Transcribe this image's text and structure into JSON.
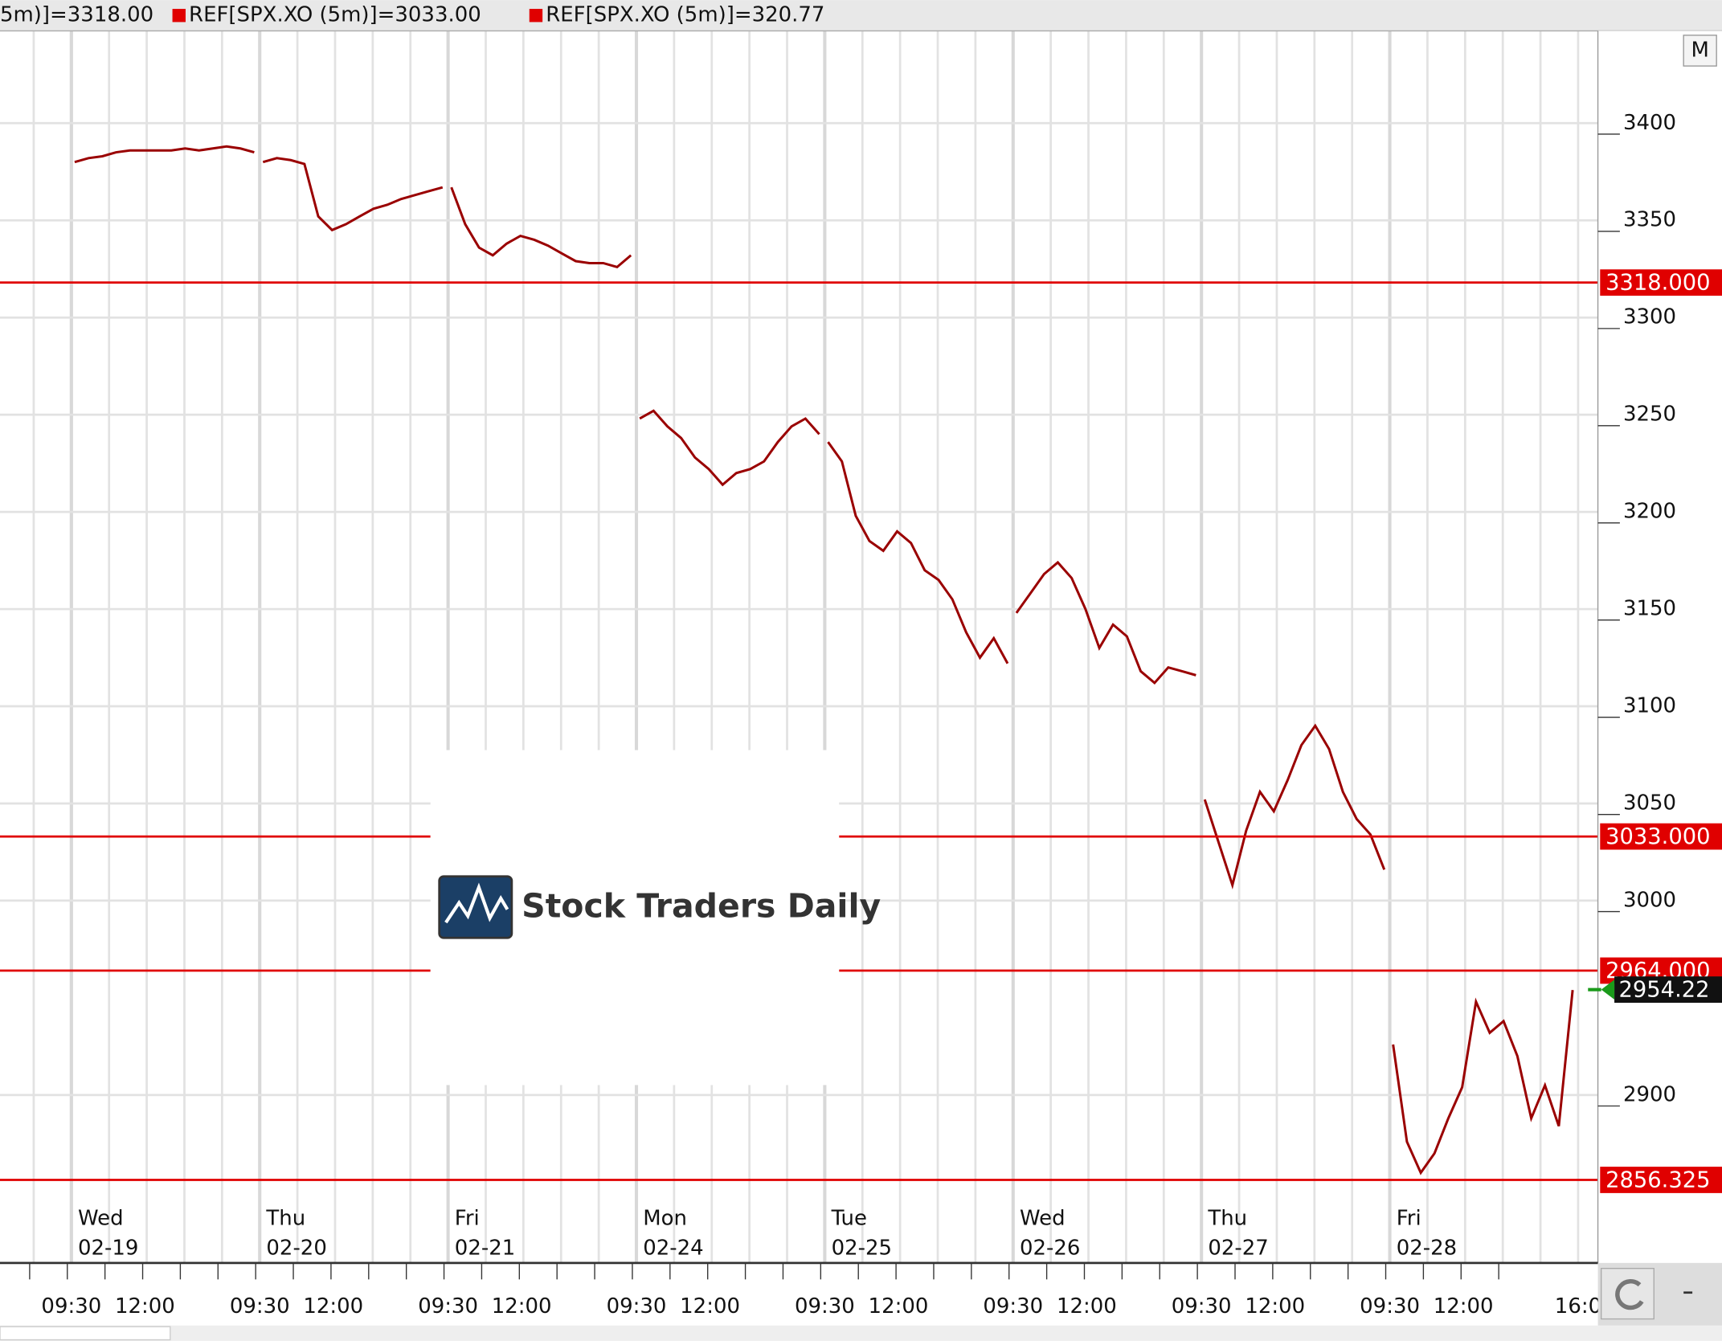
{
  "chart_data": {
    "type": "line",
    "header_items": [
      "5m)]=3318.00",
      "REF[SPX.XO (5m)]=3033.00",
      "REF[SPX.XO (5m)]=320.77"
    ],
    "button": "M",
    "watermark": "Stock Traders Daily",
    "color": "#9a0000",
    "ref_color": "#e00000",
    "ylim": [
      2813.6,
      3447.5
    ],
    "yticks": [
      2900,
      3000,
      3050,
      3100,
      3150,
      3200,
      3250,
      3300,
      3350,
      3400
    ],
    "grid": true,
    "ref_lines": [
      {
        "value": 3318,
        "label": "3318.000"
      },
      {
        "value": 3033,
        "label": "3033.000"
      },
      {
        "value": 2964,
        "label": "2964.000"
      },
      {
        "value": 2856.325,
        "label": "2856.325"
      }
    ],
    "last_price": 2954.22,
    "days": [
      {
        "weekday": "Wed",
        "date": "02-19",
        "times": [
          "09:30",
          "12:00"
        ],
        "values": [
          3380,
          3382,
          3383,
          3385,
          3386,
          3386,
          3386,
          3386,
          3387,
          3386,
          3387,
          3388,
          3387,
          3385
        ]
      },
      {
        "weekday": "Thu",
        "date": "02-20",
        "times": [
          "09:30",
          "12:00"
        ],
        "values": [
          3380,
          3382,
          3381,
          3379,
          3352,
          3345,
          3348,
          3352,
          3356,
          3358,
          3361,
          3363,
          3365,
          3367
        ]
      },
      {
        "weekday": "Fri",
        "date": "02-21",
        "times": [
          "09:30",
          "12:00"
        ],
        "values": [
          3367,
          3348,
          3336,
          3332,
          3338,
          3342,
          3340,
          3337,
          3333,
          3329,
          3328,
          3328,
          3326,
          3332
        ]
      },
      {
        "weekday": "Mon",
        "date": "02-24",
        "times": [
          "09:30",
          "12:00"
        ],
        "values": [
          3248,
          3252,
          3244,
          3238,
          3228,
          3222,
          3214,
          3220,
          3222,
          3226,
          3236,
          3244,
          3248,
          3240
        ]
      },
      {
        "weekday": "Tue",
        "date": "02-25",
        "times": [
          "09:30",
          "12:00"
        ],
        "values": [
          3236,
          3226,
          3198,
          3185,
          3180,
          3190,
          3184,
          3170,
          3165,
          3155,
          3138,
          3125,
          3135,
          3122
        ]
      },
      {
        "weekday": "Wed",
        "date": "02-26",
        "times": [
          "09:30",
          "12:00"
        ],
        "values": [
          3148,
          3158,
          3168,
          3174,
          3166,
          3150,
          3130,
          3142,
          3136,
          3118,
          3112,
          3120,
          3118,
          3116
        ]
      },
      {
        "weekday": "Thu",
        "date": "02-27",
        "times": [
          "09:30",
          "12:00"
        ],
        "values": [
          3052,
          3030,
          3008,
          3036,
          3056,
          3046,
          3062,
          3080,
          3090,
          3078,
          3056,
          3042,
          3034,
          3016
        ]
      },
      {
        "weekday": "Fri",
        "date": "02-28",
        "times": [
          "09:30",
          "12:00",
          "16:0"
        ],
        "values": [
          2926,
          2876,
          2860,
          2870,
          2888,
          2904,
          2948,
          2932,
          2938,
          2920,
          2888,
          2905,
          2884,
          2954
        ]
      }
    ]
  }
}
